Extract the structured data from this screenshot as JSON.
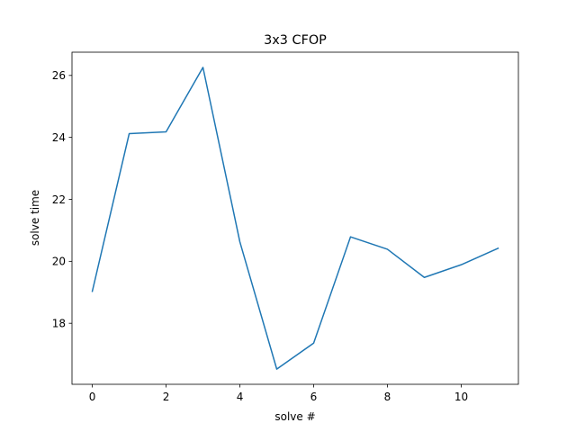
{
  "chart_data": {
    "type": "line",
    "title": "3x3 CFOP",
    "xlabel": "solve #",
    "ylabel": "solve time",
    "x": [
      0,
      1,
      2,
      3,
      4,
      5,
      6,
      7,
      8,
      9,
      10,
      11
    ],
    "series": [
      {
        "values": [
          19.03,
          24.12,
          24.18,
          26.26,
          20.63,
          16.52,
          17.36,
          20.79,
          20.39,
          19.48,
          19.89,
          20.42
        ],
        "color": "#1f77b4"
      }
    ],
    "xlim": [
      -0.55,
      11.55
    ],
    "ylim": [
      16.03,
      26.75
    ],
    "xticks": [
      0,
      2,
      4,
      6,
      8,
      10
    ],
    "yticks": [
      18,
      20,
      22,
      24,
      26
    ],
    "grid": false,
    "legend": "none"
  }
}
